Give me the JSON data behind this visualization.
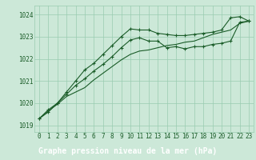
{
  "x": [
    0,
    1,
    2,
    3,
    4,
    5,
    6,
    7,
    8,
    9,
    10,
    11,
    12,
    13,
    14,
    15,
    16,
    17,
    18,
    19,
    20,
    21,
    22,
    23
  ],
  "line1": [
    1019.3,
    1019.6,
    1020.0,
    1020.5,
    1021.0,
    1021.5,
    1021.8,
    1022.2,
    1022.6,
    1023.0,
    1023.35,
    1023.3,
    1023.3,
    1023.15,
    1023.1,
    1023.05,
    1023.05,
    1023.1,
    1023.15,
    1023.2,
    1023.3,
    1023.85,
    1023.9,
    1023.7
  ],
  "line2": [
    1019.3,
    1019.7,
    1020.0,
    1020.4,
    1020.8,
    1021.1,
    1021.45,
    1021.75,
    1022.1,
    1022.5,
    1022.85,
    1022.95,
    1022.8,
    1022.8,
    1022.5,
    1022.55,
    1022.45,
    1022.55,
    1022.55,
    1022.65,
    1022.7,
    1022.8,
    1023.65,
    1023.7
  ],
  "line3": [
    1019.3,
    1019.65,
    1019.95,
    1020.3,
    1020.5,
    1020.7,
    1021.05,
    1021.35,
    1021.65,
    1021.95,
    1022.2,
    1022.35,
    1022.4,
    1022.5,
    1022.6,
    1022.65,
    1022.75,
    1022.8,
    1022.95,
    1023.1,
    1023.2,
    1023.3,
    1023.6,
    1023.7
  ],
  "bg_color": "#cce8d8",
  "grid_color": "#99ccb0",
  "line_color": "#1a5c28",
  "marker_color": "#1a5c28",
  "ylabel_ticks": [
    1019,
    1020,
    1021,
    1022,
    1023,
    1024
  ],
  "ylim": [
    1018.7,
    1024.4
  ],
  "xlabel": "Graphe pression niveau de la mer (hPa)",
  "xlabel_bg": "#1a5c28",
  "xlabel_fg": "#ffffff",
  "tick_fontsize": 5.5,
  "label_fontsize": 7.0
}
